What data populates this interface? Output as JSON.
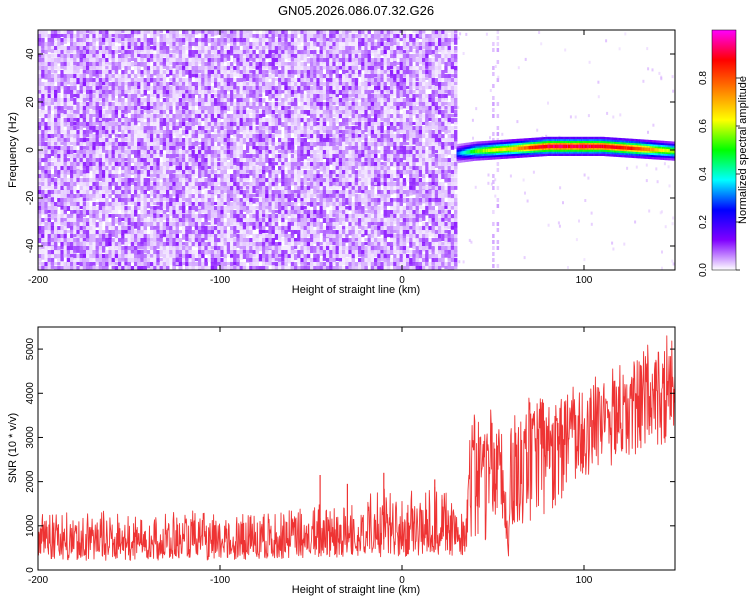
{
  "title": "GN05.2026.086.07.32.G26",
  "chart_data": [
    {
      "type": "heatmap",
      "title": "GN05.2026.086.07.32.G26",
      "xlabel": "Height of straight line (km)",
      "ylabel": "Frequency (Hz)",
      "xlim": [
        -200,
        150
      ],
      "ylim": [
        -50,
        50
      ],
      "xticks": [
        -200,
        -100,
        0,
        100
      ],
      "yticks": [
        -40,
        -20,
        0,
        20,
        40
      ],
      "noise_region_x": [
        -200,
        30
      ],
      "signal_trace": {
        "x": [
          30,
          40,
          50,
          60,
          70,
          80,
          90,
          100,
          110,
          120,
          130,
          140,
          150
        ],
        "frequency": [
          -1.5,
          -0.5,
          0,
          0.5,
          1.0,
          1.5,
          1.5,
          1.5,
          1.5,
          1.0,
          0.5,
          0.0,
          -0.5
        ],
        "amplitude": [
          0.3,
          0.55,
          0.65,
          0.7,
          0.85,
          0.95,
          0.95,
          0.95,
          0.92,
          0.9,
          0.85,
          0.7,
          0.6
        ]
      },
      "colorbar": {
        "label": "Normalized spectral amplitude",
        "range": [
          0,
          1
        ],
        "ticks": [
          "0.0",
          "0.2",
          "0.4",
          "0.6",
          "0.8"
        ],
        "colors": [
          "#ffffff",
          "#8000ff",
          "#0000ff",
          "#00ffff",
          "#00ff00",
          "#ffff00",
          "#ff8000",
          "#ff0000",
          "#ff00ff"
        ]
      }
    },
    {
      "type": "line",
      "xlabel": "Height of straight line (km)",
      "ylabel": "SNR (10 * v/v)",
      "xlim": [
        -200,
        150
      ],
      "ylim": [
        0,
        5500
      ],
      "xticks": [
        -200,
        -100,
        0,
        100
      ],
      "yticks": [
        0,
        1000,
        2000,
        3000,
        4000,
        5000
      ],
      "color": "#ee3333",
      "series": [
        {
          "name": "SNR",
          "x": [
            -200,
            -180,
            -160,
            -140,
            -120,
            -100,
            -80,
            -60,
            -45,
            -40,
            -35,
            -20,
            -10,
            0,
            10,
            20,
            30,
            35,
            38,
            40,
            45,
            50,
            55,
            58,
            60,
            70,
            80,
            90,
            100,
            110,
            120,
            130,
            140,
            150
          ],
          "y": [
            650,
            600,
            620,
            610,
            630,
            620,
            640,
            650,
            700,
            950,
            720,
            760,
            800,
            780,
            820,
            850,
            900,
            900,
            2700,
            2600,
            2500,
            2800,
            2300,
            400,
            2600,
            2900,
            3000,
            3200,
            3400,
            3600,
            3700,
            3900,
            4100,
            4200
          ],
          "band_low": [
            250,
            200,
            220,
            210,
            230,
            220,
            240,
            250,
            260,
            270,
            260,
            280,
            290,
            300,
            310,
            320,
            330,
            340,
            500,
            700,
            600,
            900,
            500,
            100,
            800,
            1100,
            1300,
            1600,
            2000,
            2300,
            2400,
            2600,
            2800,
            2900
          ],
          "band_high": [
            1300,
            1300,
            1350,
            1300,
            1350,
            1300,
            1350,
            1400,
            1500,
            2200,
            1500,
            1700,
            1900,
            1700,
            1900,
            2000,
            1500,
            1600,
            3600,
            3500,
            3300,
            3900,
            3300,
            1200,
            3500,
            3900,
            4000,
            4100,
            4300,
            4500,
            4700,
            5000,
            5300,
            5400
          ]
        }
      ]
    }
  ]
}
